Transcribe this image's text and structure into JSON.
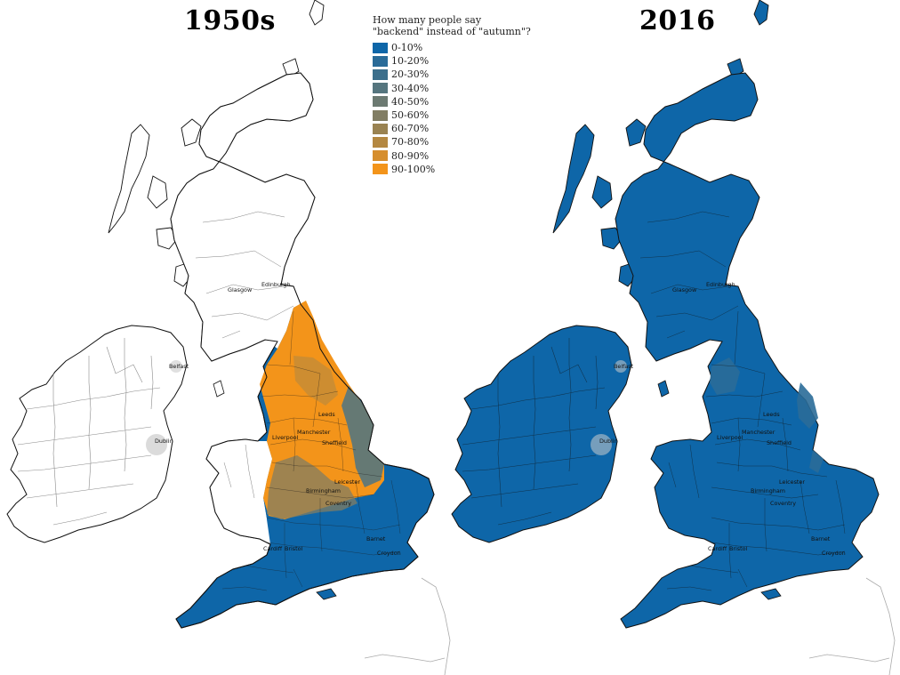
{
  "titles": {
    "left": "1950s",
    "right": "2016"
  },
  "legend": {
    "question": "How many people say\n\"backend\" instead of \"autumn\"?",
    "items": [
      {
        "label": "0-10%",
        "color": "#0e66a8"
      },
      {
        "label": "10-20%",
        "color": "#2a6b98"
      },
      {
        "label": "20-30%",
        "color": "#3c6f8c"
      },
      {
        "label": "30-40%",
        "color": "#55757e"
      },
      {
        "label": "40-50%",
        "color": "#6c7a72"
      },
      {
        "label": "50-60%",
        "color": "#817d63"
      },
      {
        "label": "60-70%",
        "color": "#9a8352"
      },
      {
        "label": "70-80%",
        "color": "#b48841"
      },
      {
        "label": "80-90%",
        "color": "#d68e2d"
      },
      {
        "label": "90-100%",
        "color": "#f3941a"
      }
    ]
  },
  "cities": {
    "glasgow": "Glasgow",
    "edinburgh": "Edinburgh",
    "belfast": "Belfast",
    "dublin": "Dublin",
    "leeds": "Leeds",
    "manchester": "Manchester",
    "liverpool": "Liverpool",
    "sheffield": "Sheffield",
    "leicester": "Leicester",
    "birmingham": "Birmingham",
    "coventry": "Coventry",
    "cardiff": "Cardiff",
    "bristol": "Bristol",
    "barnet": "Barnet",
    "croydon": "Croydon"
  },
  "colors": {
    "blue": "#0e66a8",
    "orange": "#f3941a",
    "border": "#1a1a1a",
    "subdivision": "#8a8a8a",
    "land_blank": "#ffffff"
  }
}
